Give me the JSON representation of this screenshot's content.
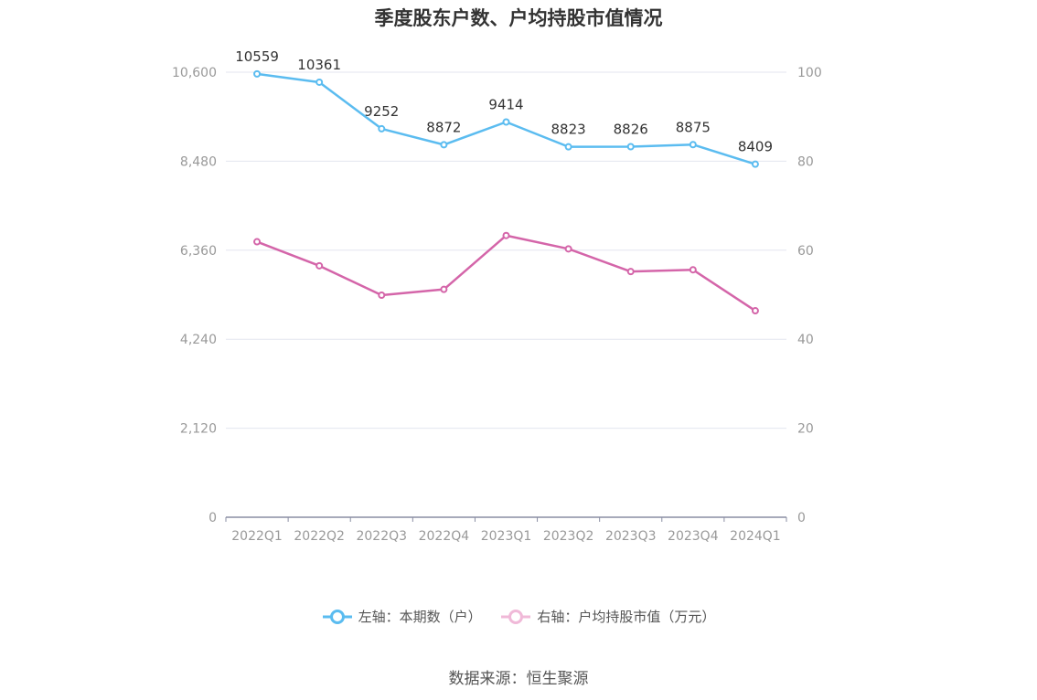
{
  "colors": {
    "left_series": "#5bbcf0",
    "right_series": "#d465a9",
    "grid": "#e3e6ef",
    "axis": "#8a8ea3",
    "tick": "#999999"
  },
  "source": "数据来源：恒生聚源",
  "chart_data": {
    "type": "line",
    "title": "季度股东户数、户均持股市值情况",
    "categories": [
      "2022Q1",
      "2022Q2",
      "2022Q3",
      "2022Q4",
      "2023Q1",
      "2023Q2",
      "2023Q3",
      "2023Q4",
      "2024Q1"
    ],
    "left_axis": {
      "ylim": [
        0,
        10600
      ],
      "ticks": [
        "0",
        "2,120",
        "4,240",
        "6,360",
        "8,480",
        "10,600"
      ],
      "tick_values": [
        0,
        2120,
        4240,
        6360,
        8480,
        10600
      ]
    },
    "right_axis": {
      "ylim": [
        0,
        100
      ],
      "ticks": [
        "0",
        "20",
        "40",
        "60",
        "80",
        "100"
      ],
      "tick_values": [
        0,
        20,
        40,
        60,
        80,
        100
      ]
    },
    "grid": true,
    "legend_position": "bottom",
    "series": [
      {
        "name": "左轴：本期数（户）",
        "axis": "left",
        "values": [
          10559,
          10361,
          9252,
          8872,
          9414,
          8823,
          8826,
          8875,
          8409
        ],
        "labels": [
          "10559",
          "10361",
          "9252",
          "8872",
          "9414",
          "8823",
          "8826",
          "8875",
          "8409"
        ]
      },
      {
        "name": "右轴：户均持股市值（万元）",
        "axis": "right",
        "values": [
          61.9,
          56.5,
          49.9,
          51.2,
          63.3,
          60.3,
          55.2,
          55.6,
          46.4
        ]
      }
    ]
  }
}
